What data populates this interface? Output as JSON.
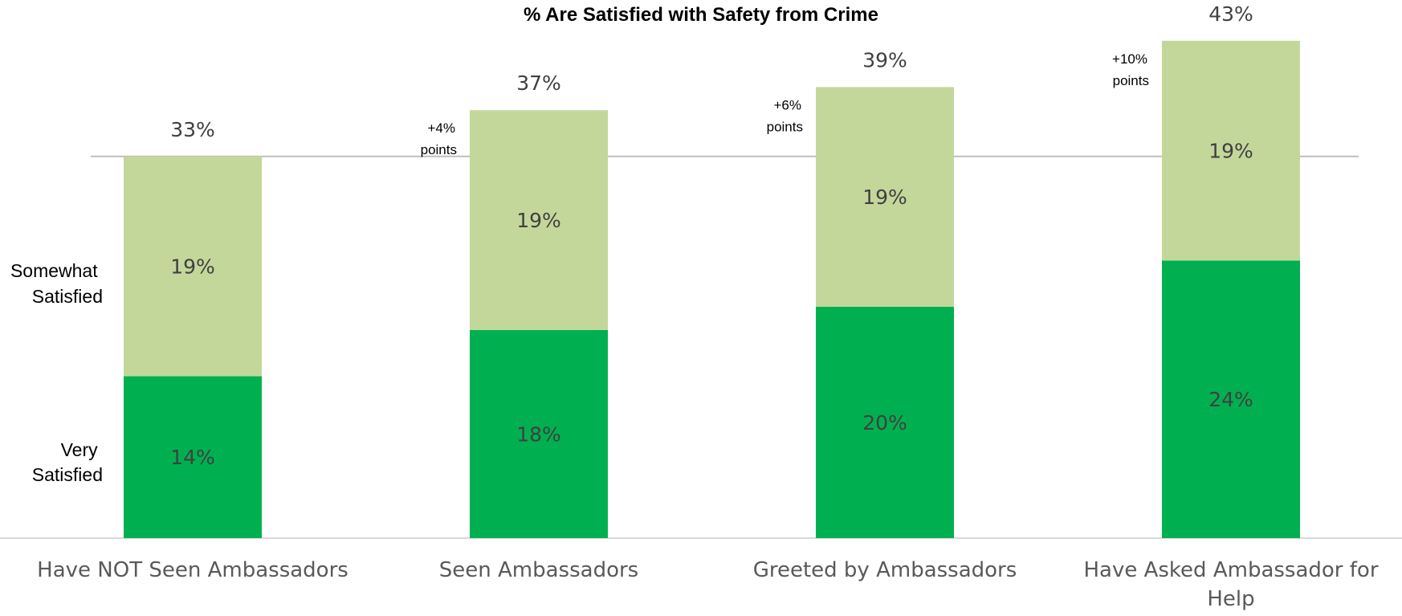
{
  "chart_data": {
    "type": "bar",
    "stacked": true,
    "title": "% Are Satisfied with Safety from Crime",
    "categories": [
      "Have NOT Seen Ambassadors",
      "Seen Ambassadors",
      "Greeted by Ambassadors",
      "Have Asked Ambassador for Help"
    ],
    "series": [
      {
        "name": "Very Satisfied",
        "values": [
          14,
          18,
          20,
          24
        ],
        "labels": [
          "14%",
          "18%",
          "20%",
          "24%"
        ],
        "color": "#00b050"
      },
      {
        "name": "Somewhat Satisfied",
        "values": [
          19,
          19,
          19,
          19
        ],
        "labels": [
          "19%",
          "19%",
          "19%",
          "19%"
        ],
        "color": "#c4d79b"
      }
    ],
    "totals": [
      "33%",
      "37%",
      "39%",
      "43%"
    ],
    "totals_values": [
      33,
      37,
      39,
      43
    ],
    "differences": [
      null,
      "+4% points",
      "+6% points",
      "+10% points"
    ],
    "reference_line_value": 33,
    "ylim": [
      0,
      43
    ],
    "legend": "left",
    "grid": false
  }
}
